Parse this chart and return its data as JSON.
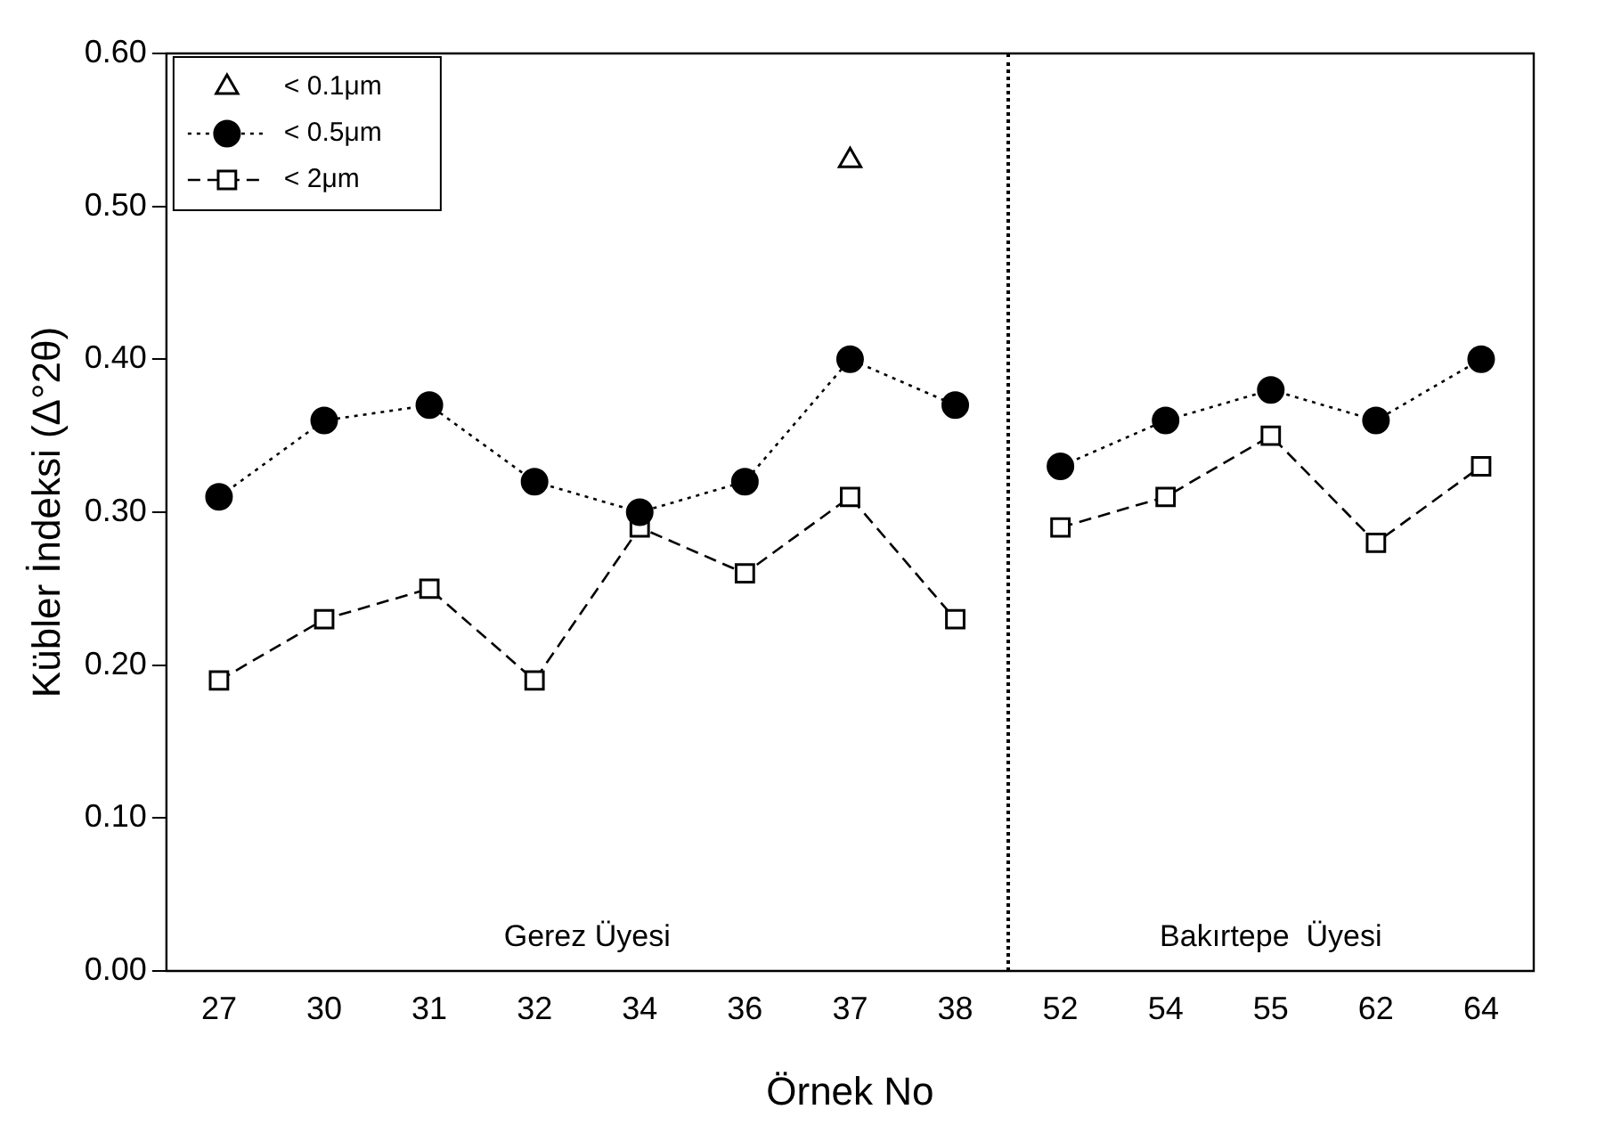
{
  "chart_data": {
    "type": "line",
    "xlabel": "Örnek No",
    "ylabel": "Kübler İndeksi (Δ°2θ)",
    "categories": [
      "27",
      "30",
      "31",
      "32",
      "34",
      "36",
      "37",
      "38",
      "52",
      "54",
      "55",
      "62",
      "64"
    ],
    "series": [
      {
        "name": "< 0.1μm",
        "type": "scatter",
        "color": "#000000",
        "marker": "triangle",
        "values": [
          null,
          null,
          null,
          null,
          null,
          null,
          0.53,
          null,
          null,
          null,
          null,
          null,
          null
        ]
      },
      {
        "name": "< 0.5μm",
        "color": "#000000",
        "marker": "circle",
        "line_style": "dotted",
        "values": [
          0.31,
          0.36,
          0.37,
          0.32,
          0.3,
          0.32,
          0.4,
          0.37,
          0.33,
          0.36,
          0.38,
          0.36,
          0.4
        ]
      },
      {
        "name": "< 2μm",
        "color": "#000000",
        "marker": "square",
        "line_style": "dashed",
        "values": [
          0.19,
          0.23,
          0.25,
          0.19,
          0.29,
          0.26,
          0.31,
          0.23,
          0.29,
          0.31,
          0.35,
          0.28,
          0.33
        ]
      }
    ],
    "ylim": [
      0,
      0.6
    ],
    "yticks": [
      {
        "value": 0,
        "label": "0.00"
      },
      {
        "value": 0.1,
        "label": "0.10"
      },
      {
        "value": 0.2,
        "label": "0.20"
      },
      {
        "value": 0.3,
        "label": "0.30"
      },
      {
        "value": 0.4,
        "label": "0.40"
      },
      {
        "value": 0.5,
        "label": "0.50"
      },
      {
        "value": 0.6,
        "label": "0.60"
      }
    ],
    "annotations": [
      "Gerez Üyesi",
      "Bakırtepe  Üyesi"
    ],
    "grid": false,
    "legend": "top left"
  }
}
